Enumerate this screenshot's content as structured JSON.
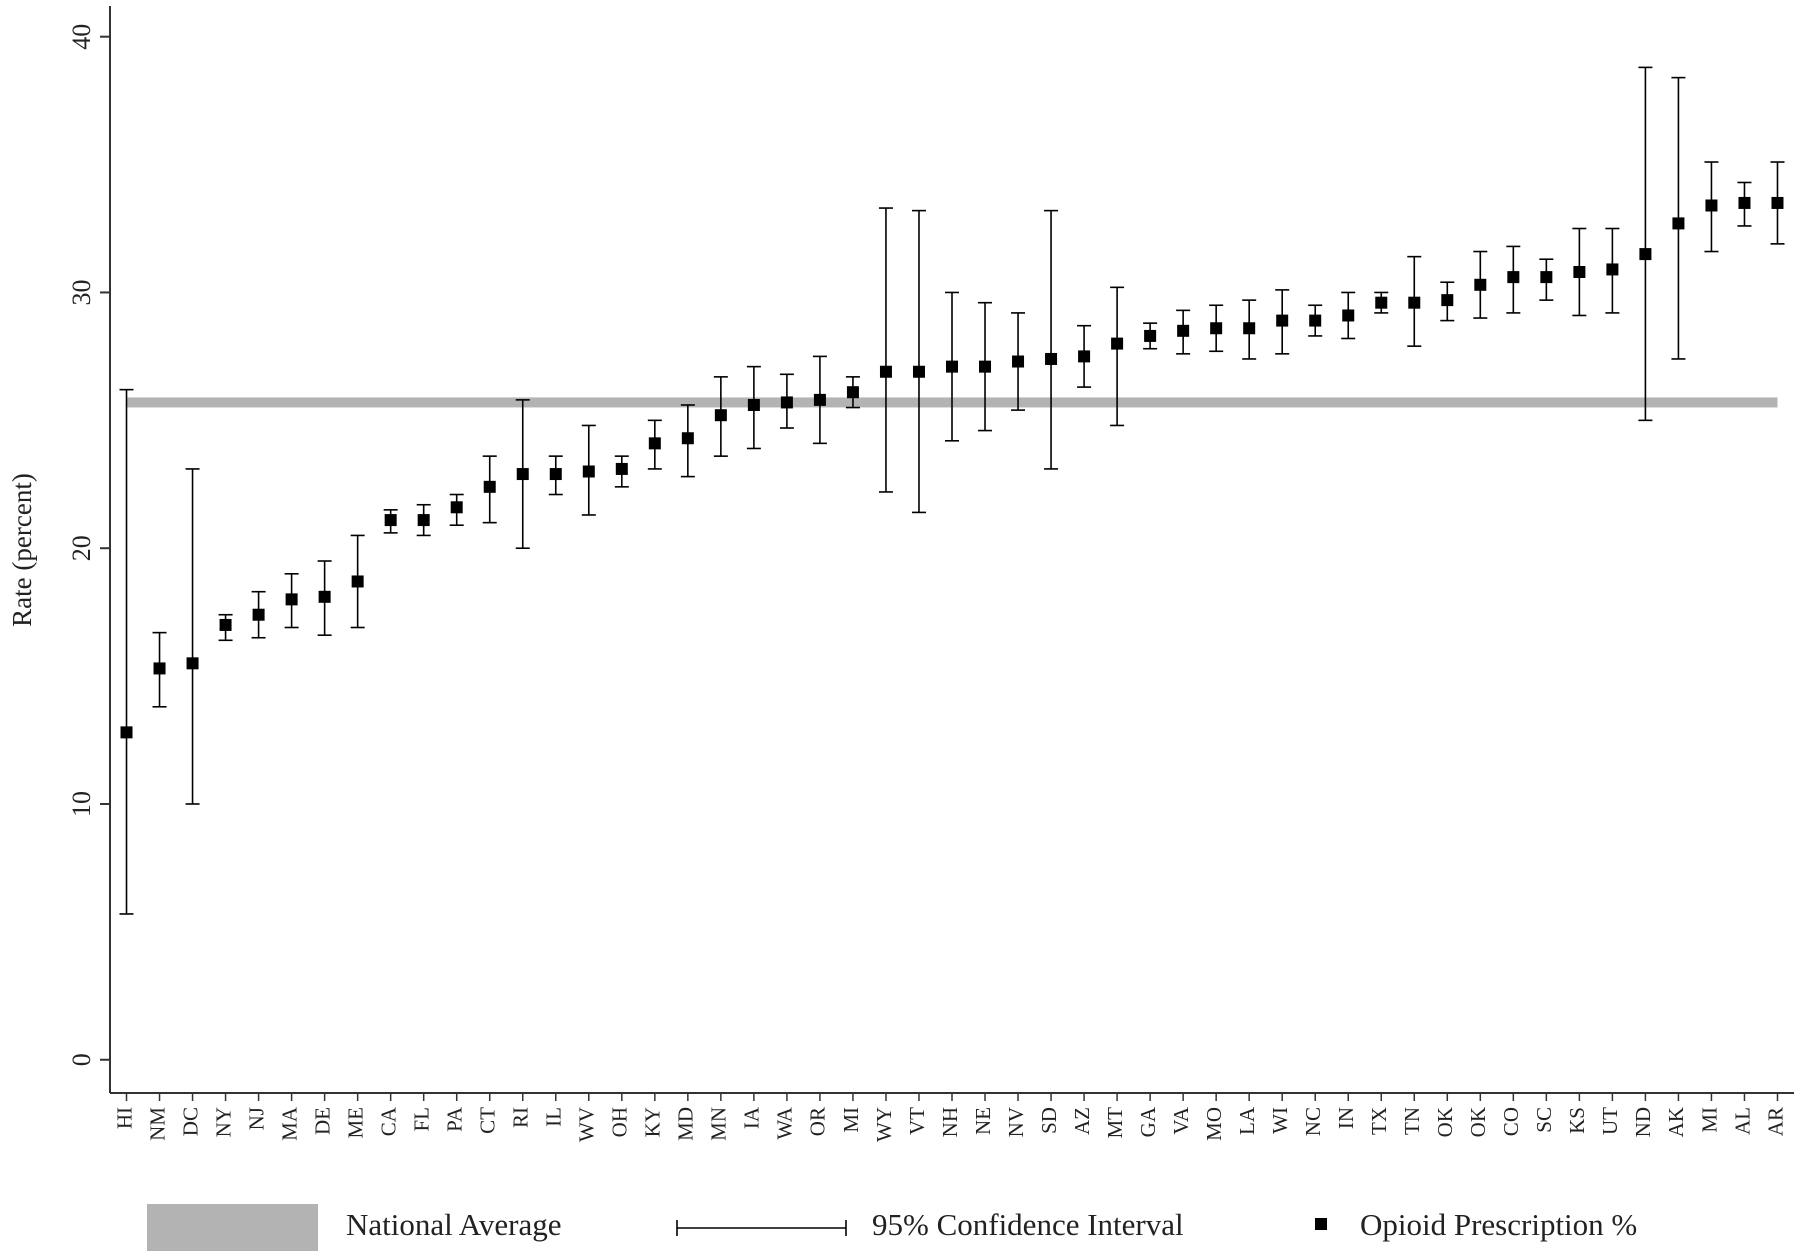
{
  "chart_data": {
    "type": "errorbar",
    "ylabel": "Rate (percent)",
    "categories": [
      "HI",
      "NM",
      "DC",
      "NY",
      "NJ",
      "MA",
      "DE",
      "ME",
      "CA",
      "FL",
      "PA",
      "CT",
      "RI",
      "IL",
      "WV",
      "OH",
      "KY",
      "MD",
      "MN",
      "IA",
      "WA",
      "OR",
      "MI",
      "WY",
      "VT",
      "NH",
      "NE",
      "NV",
      "SD",
      "AZ",
      "MT",
      "GA",
      "VA",
      "MO",
      "LA",
      "WI",
      "NC",
      "IN",
      "TX",
      "TN",
      "OK",
      "OK",
      "CO",
      "SC",
      "KS",
      "UT",
      "ND",
      "AK",
      "MI",
      "AL",
      "AR"
    ],
    "values": [
      12.8,
      15.3,
      15.5,
      17.0,
      17.4,
      18.0,
      18.1,
      18.7,
      21.1,
      21.1,
      21.6,
      22.4,
      22.9,
      22.9,
      23.0,
      23.1,
      24.1,
      24.3,
      25.2,
      25.6,
      25.7,
      25.8,
      26.1,
      26.9,
      26.9,
      27.1,
      27.1,
      27.3,
      27.4,
      27.5,
      28.0,
      28.3,
      28.5,
      28.6,
      28.6,
      28.9,
      28.9,
      29.1,
      29.6,
      29.6,
      29.7,
      30.3,
      30.6,
      30.6,
      30.8,
      30.9,
      31.5,
      32.7,
      33.4,
      33.5,
      33.5
    ],
    "lower": [
      5.7,
      13.8,
      10.0,
      16.4,
      16.5,
      16.9,
      16.6,
      16.9,
      20.6,
      20.5,
      20.9,
      21.0,
      20.0,
      22.1,
      21.3,
      22.4,
      23.1,
      22.8,
      23.6,
      23.9,
      24.7,
      24.1,
      25.5,
      22.2,
      21.4,
      24.2,
      24.6,
      25.4,
      23.1,
      26.3,
      24.8,
      27.8,
      27.6,
      27.7,
      27.4,
      27.6,
      28.3,
      28.2,
      29.2,
      27.9,
      28.9,
      29.0,
      29.2,
      29.7,
      29.1,
      29.2,
      25.0,
      27.4,
      31.6,
      32.6,
      31.9
    ],
    "upper": [
      26.2,
      16.7,
      23.1,
      17.4,
      18.3,
      19.0,
      19.5,
      20.5,
      21.5,
      21.7,
      22.1,
      23.6,
      25.8,
      23.6,
      24.8,
      23.6,
      25.0,
      25.6,
      26.7,
      27.1,
      26.8,
      27.5,
      26.7,
      33.3,
      33.2,
      30.0,
      29.6,
      29.2,
      33.2,
      28.7,
      30.2,
      28.8,
      29.3,
      29.5,
      29.7,
      30.1,
      29.5,
      30.0,
      30.0,
      31.4,
      30.4,
      31.6,
      31.8,
      31.3,
      32.5,
      32.5,
      38.8,
      38.4,
      35.1,
      34.3,
      35.1
    ],
    "national_average": 25.7,
    "ylim": [
      -1.3,
      41.2
    ],
    "yticks": [
      0,
      10,
      20,
      30,
      40
    ],
    "color": "#000000",
    "band_color": "#b3b3b3",
    "legend": [
      "National Average",
      "95% Confidence Interval",
      "Opioid Prescription %"
    ]
  }
}
